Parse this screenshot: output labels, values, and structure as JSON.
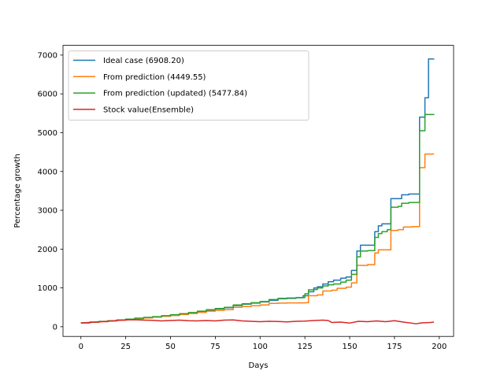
{
  "chart_data": {
    "type": "line",
    "title": "",
    "xlabel": "Days",
    "ylabel": "Percentage growth",
    "xlim": [
      -10,
      208
    ],
    "ylim": [
      -250,
      7250
    ],
    "xticks": [
      0,
      25,
      50,
      75,
      100,
      125,
      150,
      175,
      200
    ],
    "yticks": [
      0,
      1000,
      2000,
      3000,
      4000,
      5000,
      6000,
      7000
    ],
    "grid": false,
    "legend_position": "upper-left",
    "series": [
      {
        "name": "Ideal case (6908.20)",
        "color": "#1f77b4",
        "step": true,
        "points": [
          [
            0,
            100
          ],
          [
            5,
            118
          ],
          [
            10,
            135
          ],
          [
            15,
            150
          ],
          [
            20,
            170
          ],
          [
            25,
            190
          ],
          [
            30,
            215
          ],
          [
            35,
            235
          ],
          [
            40,
            255
          ],
          [
            45,
            275
          ],
          [
            50,
            300
          ],
          [
            55,
            330
          ],
          [
            60,
            360
          ],
          [
            65,
            395
          ],
          [
            70,
            430
          ],
          [
            75,
            460
          ],
          [
            80,
            490
          ],
          [
            85,
            545
          ],
          [
            90,
            580
          ],
          [
            95,
            610
          ],
          [
            100,
            640
          ],
          [
            105,
            680
          ],
          [
            110,
            720
          ],
          [
            115,
            730
          ],
          [
            120,
            745
          ],
          [
            124,
            800
          ],
          [
            127,
            900
          ],
          [
            130,
            1000
          ],
          [
            132,
            1030
          ],
          [
            135,
            1100
          ],
          [
            138,
            1160
          ],
          [
            141,
            1200
          ],
          [
            145,
            1250
          ],
          [
            148,
            1280
          ],
          [
            151,
            1450
          ],
          [
            154,
            1950
          ],
          [
            156,
            2100
          ],
          [
            160,
            2100
          ],
          [
            164,
            2450
          ],
          [
            166,
            2600
          ],
          [
            168,
            2650
          ],
          [
            171,
            2650
          ],
          [
            173,
            3300
          ],
          [
            175,
            3300
          ],
          [
            179,
            3400
          ],
          [
            183,
            3420
          ],
          [
            187,
            3420
          ],
          [
            189,
            5400
          ],
          [
            192,
            5900
          ],
          [
            194,
            6900
          ],
          [
            197,
            6908.2
          ]
        ]
      },
      {
        "name": "From prediction (4449.55)",
        "color": "#ff7f0e",
        "step": true,
        "points": [
          [
            0,
            100
          ],
          [
            5,
            115
          ],
          [
            10,
            130
          ],
          [
            15,
            148
          ],
          [
            20,
            165
          ],
          [
            25,
            185
          ],
          [
            30,
            205
          ],
          [
            35,
            225
          ],
          [
            40,
            245
          ],
          [
            45,
            268
          ],
          [
            50,
            290
          ],
          [
            55,
            315
          ],
          [
            60,
            340
          ],
          [
            65,
            370
          ],
          [
            70,
            400
          ],
          [
            75,
            420
          ],
          [
            80,
            440
          ],
          [
            85,
            500
          ],
          [
            90,
            520
          ],
          [
            95,
            540
          ],
          [
            100,
            560
          ],
          [
            105,
            600
          ],
          [
            110,
            610
          ],
          [
            115,
            615
          ],
          [
            120,
            615
          ],
          [
            125,
            620
          ],
          [
            127,
            800
          ],
          [
            132,
            820
          ],
          [
            135,
            920
          ],
          [
            140,
            940
          ],
          [
            143,
            990
          ],
          [
            148,
            1020
          ],
          [
            151,
            1130
          ],
          [
            154,
            1580
          ],
          [
            160,
            1600
          ],
          [
            164,
            1900
          ],
          [
            166,
            1980
          ],
          [
            168,
            1980
          ],
          [
            172,
            1980
          ],
          [
            173,
            2480
          ],
          [
            177,
            2500
          ],
          [
            180,
            2570
          ],
          [
            185,
            2580
          ],
          [
            188,
            2580
          ],
          [
            189,
            4100
          ],
          [
            192,
            4450
          ],
          [
            197,
            4449.55
          ]
        ]
      },
      {
        "name": "From prediction (updated) (5477.84)",
        "color": "#2ca02c",
        "step": true,
        "points": [
          [
            0,
            100
          ],
          [
            5,
            120
          ],
          [
            10,
            138
          ],
          [
            15,
            155
          ],
          [
            20,
            175
          ],
          [
            25,
            195
          ],
          [
            30,
            220
          ],
          [
            35,
            240
          ],
          [
            40,
            260
          ],
          [
            45,
            285
          ],
          [
            50,
            310
          ],
          [
            55,
            335
          ],
          [
            60,
            365
          ],
          [
            65,
            400
          ],
          [
            70,
            440
          ],
          [
            75,
            470
          ],
          [
            80,
            500
          ],
          [
            85,
            560
          ],
          [
            90,
            590
          ],
          [
            95,
            620
          ],
          [
            100,
            650
          ],
          [
            105,
            700
          ],
          [
            110,
            730
          ],
          [
            115,
            740
          ],
          [
            120,
            750
          ],
          [
            125,
            850
          ],
          [
            127,
            950
          ],
          [
            130,
            960
          ],
          [
            132,
            1000
          ],
          [
            135,
            1050
          ],
          [
            138,
            1080
          ],
          [
            141,
            1100
          ],
          [
            145,
            1150
          ],
          [
            148,
            1200
          ],
          [
            151,
            1350
          ],
          [
            154,
            1800
          ],
          [
            156,
            1950
          ],
          [
            160,
            1960
          ],
          [
            164,
            2300
          ],
          [
            166,
            2400
          ],
          [
            168,
            2450
          ],
          [
            171,
            2500
          ],
          [
            173,
            3080
          ],
          [
            177,
            3100
          ],
          [
            179,
            3180
          ],
          [
            183,
            3200
          ],
          [
            187,
            3200
          ],
          [
            189,
            5050
          ],
          [
            192,
            5470
          ],
          [
            197,
            5477.84
          ]
        ]
      },
      {
        "name": "Stock value(Ensemble)",
        "color": "#d62728",
        "step": false,
        "points": [
          [
            0,
            100
          ],
          [
            5,
            110
          ],
          [
            10,
            125
          ],
          [
            15,
            140
          ],
          [
            20,
            160
          ],
          [
            25,
            175
          ],
          [
            30,
            180
          ],
          [
            35,
            170
          ],
          [
            40,
            165
          ],
          [
            45,
            150
          ],
          [
            50,
            160
          ],
          [
            55,
            170
          ],
          [
            60,
            155
          ],
          [
            65,
            150
          ],
          [
            70,
            160
          ],
          [
            75,
            150
          ],
          [
            80,
            170
          ],
          [
            85,
            175
          ],
          [
            90,
            150
          ],
          [
            95,
            140
          ],
          [
            100,
            130
          ],
          [
            105,
            140
          ],
          [
            110,
            135
          ],
          [
            115,
            125
          ],
          [
            120,
            140
          ],
          [
            125,
            145
          ],
          [
            130,
            160
          ],
          [
            135,
            170
          ],
          [
            138,
            160
          ],
          [
            140,
            110
          ],
          [
            145,
            120
          ],
          [
            150,
            95
          ],
          [
            155,
            140
          ],
          [
            160,
            130
          ],
          [
            165,
            150
          ],
          [
            170,
            130
          ],
          [
            175,
            155
          ],
          [
            180,
            120
          ],
          [
            185,
            90
          ],
          [
            187,
            75
          ],
          [
            190,
            100
          ],
          [
            195,
            110
          ],
          [
            197,
            120
          ]
        ]
      }
    ]
  }
}
